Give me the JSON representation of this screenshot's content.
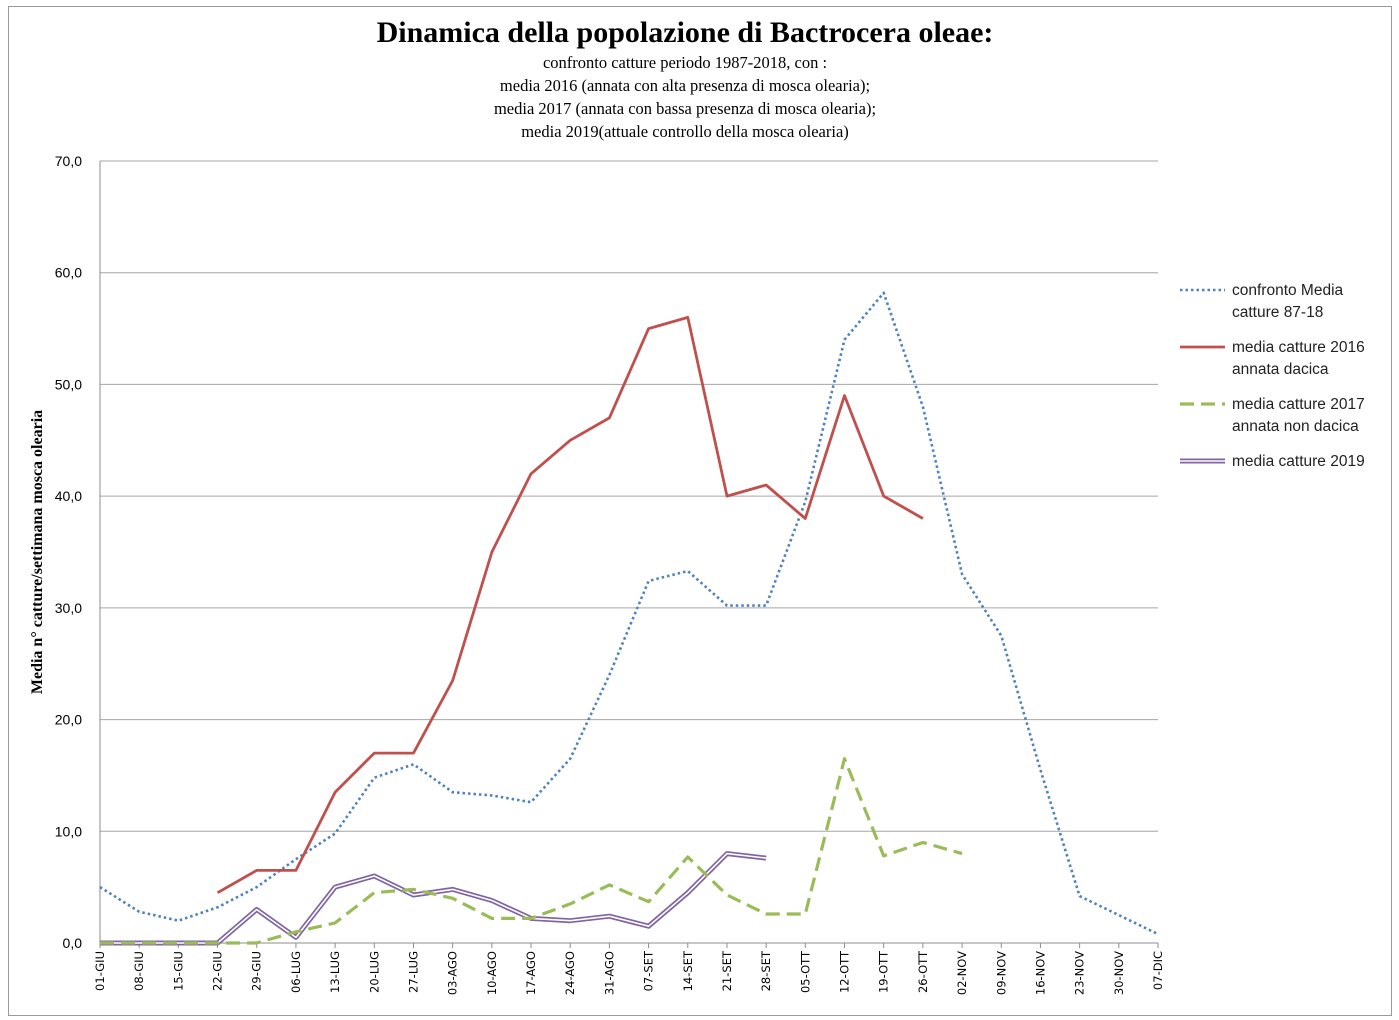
{
  "chart_data": {
    "type": "line",
    "title": "Dinamica della popolazione di Bactrocera oleae:",
    "subtitle_lines": [
      "confronto catture periodo 1987-2018, con :",
      "media 2016 (annata con alta presenza di mosca olearia);",
      "media 2017 (annata con bassa presenza di mosca olearia);",
      "media 2019(attuale controllo della mosca olearia)"
    ],
    "xlabel": "",
    "ylabel": "Media n° catture/settimana mosca olearia",
    "ylim": [
      0,
      70
    ],
    "y_ticks": [
      "0,0",
      "10,0",
      "20,0",
      "30,0",
      "40,0",
      "50,0",
      "60,0",
      "70,0"
    ],
    "grid": "horizontal",
    "legend_position": "right",
    "categories": [
      "01-GIU",
      "08-GIU",
      "15-GIU",
      "22-GIU",
      "29-GIU",
      "06-LUG",
      "13-LUG",
      "20-LUG",
      "27-LUG",
      "03-AGO",
      "10-AGO",
      "17-AGO",
      "24-AGO",
      "31-AGO",
      "07-SET",
      "14-SET",
      "21-SET",
      "28-SET",
      "05-OTT",
      "12-OTT",
      "19-OTT",
      "26-OTT",
      "02-NOV",
      "09-NOV",
      "16-NOV",
      "23-NOV",
      "30-NOV",
      "07-DIC"
    ],
    "series": [
      {
        "name": "confronto Media catture 87-18",
        "name_lines": [
          "confronto Media",
          "catture 87-18"
        ],
        "style": "dotted",
        "color": "#4f81bd",
        "values": [
          5.0,
          2.8,
          2.0,
          3.2,
          5.0,
          7.5,
          9.8,
          14.8,
          16.0,
          13.5,
          13.2,
          12.6,
          16.5,
          24.0,
          32.4,
          33.3,
          30.2,
          30.2,
          39.5,
          54.0,
          58.2,
          48.0,
          33.0,
          27.5,
          15.5,
          4.2,
          2.5,
          0.8
        ]
      },
      {
        "name": "media catture 2016 annata dacica",
        "name_lines": [
          "media catture 2016",
          "annata dacica"
        ],
        "style": "solid",
        "color": "#c0504d",
        "values": [
          null,
          null,
          null,
          4.5,
          6.5,
          6.5,
          13.5,
          17.0,
          17.0,
          23.5,
          35.0,
          42.0,
          45.0,
          47.0,
          55.0,
          56.0,
          40.0,
          41.0,
          38.0,
          49.0,
          40.0,
          38.0,
          null,
          null,
          null,
          null,
          null,
          null
        ]
      },
      {
        "name": "media catture 2017 annata non dacica",
        "name_lines": [
          "media catture 2017",
          "annata non dacica"
        ],
        "style": "dashed",
        "color": "#9bbb59",
        "values": [
          0.0,
          0.0,
          0.0,
          0.0,
          0.0,
          1.0,
          1.8,
          4.5,
          4.8,
          4.0,
          2.2,
          2.2,
          3.5,
          5.2,
          3.7,
          7.7,
          4.3,
          2.6,
          2.6,
          16.5,
          7.8,
          9.0,
          8.0,
          null,
          null,
          null,
          null,
          null
        ]
      },
      {
        "name": "media catture 2019",
        "name_lines": [
          "media catture 2019"
        ],
        "style": "double",
        "color": "#8064a2",
        "values": [
          0.0,
          0.0,
          0.0,
          0.0,
          3.0,
          0.5,
          5.0,
          6.0,
          4.3,
          4.8,
          3.8,
          2.2,
          2.0,
          2.4,
          1.5,
          4.5,
          8.0,
          7.6,
          null,
          null,
          null,
          null,
          null,
          null,
          null,
          null,
          null,
          null
        ]
      }
    ]
  }
}
